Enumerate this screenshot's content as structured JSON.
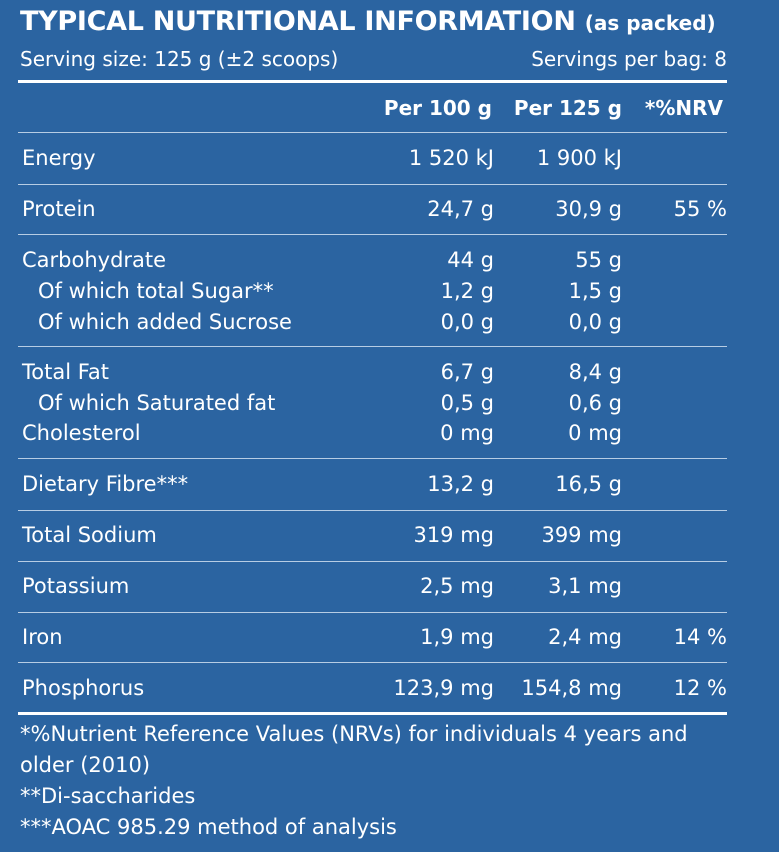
{
  "title": "TYPICAL NUTRITIONAL INFORMATION",
  "title_suffix": "(as packed)",
  "serving_size": "Serving size: 125 g (±2 scoops)",
  "servings_per_bag": "Servings per bag: 8",
  "columns": [
    "Per 100 g",
    "Per 125 g",
    "*%NRV"
  ],
  "rows": [
    {
      "label": "Energy",
      "per100": "1 520 kJ",
      "per125": "1 900 kJ",
      "nrv": ""
    },
    {
      "label": "Protein",
      "per100": "24,7 g",
      "per125": "30,9 g",
      "nrv": "55 %"
    },
    {
      "label": "Carbohydrate",
      "per100": "44 g",
      "per125": "55 g",
      "nrv": ""
    },
    {
      "label": "Of which total Sugar**",
      "per100": "1,2 g",
      "per125": "1,5 g",
      "nrv": ""
    },
    {
      "label": "Of which added Sucrose",
      "per100": "0,0 g",
      "per125": "0,0 g",
      "nrv": ""
    },
    {
      "label": "Total Fat",
      "per100": "6,7 g",
      "per125": "8,4 g",
      "nrv": ""
    },
    {
      "label": "Of which Saturated fat",
      "per100": "0,5 g",
      "per125": "0,6 g",
      "nrv": ""
    },
    {
      "label": "Cholesterol",
      "per100": "0 mg",
      "per125": "0 mg",
      "nrv": ""
    },
    {
      "label": "Dietary Fibre***",
      "per100": "13,2 g",
      "per125": "16,5 g",
      "nrv": ""
    },
    {
      "label": "Total Sodium",
      "per100": "319 mg",
      "per125": "399 mg",
      "nrv": ""
    },
    {
      "label": "Potassium",
      "per100": "2,5 mg",
      "per125": "3,1 mg",
      "nrv": ""
    },
    {
      "label": "Iron",
      "per100": "1,9 mg",
      "per125": "2,4 mg",
      "nrv": "14 %"
    },
    {
      "label": "Phosphorus",
      "per100": "123,9 mg",
      "per125": "154,8 mg",
      "nrv": "12 %"
    }
  ],
  "footnotes": [
    "*%Nutrient Reference Values (NRVs) for individuals 4 years and",
    "older (2010)",
    "**Di-saccharides",
    "***AOAC 985.29 method of analysis"
  ],
  "colors": {
    "background": "#2b64a1",
    "text": "#ffffff",
    "divider": "#b7cde4"
  }
}
